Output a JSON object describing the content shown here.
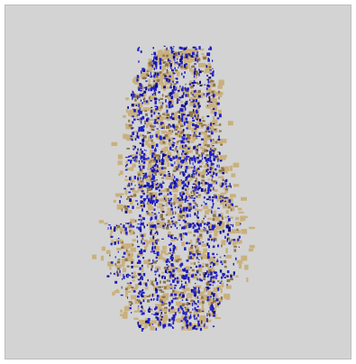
{
  "viewer": {
    "background_color": "#d3d3d3",
    "frame_color": "#bdbdbd",
    "volume": {
      "layer_a": {
        "name": "tan-isosurface",
        "color": "#c9b07e",
        "shade": "#8e7448"
      },
      "layer_b": {
        "name": "blue-isosurface",
        "color": "#1f1fc8",
        "shade": "#0b0b8a"
      }
    }
  }
}
